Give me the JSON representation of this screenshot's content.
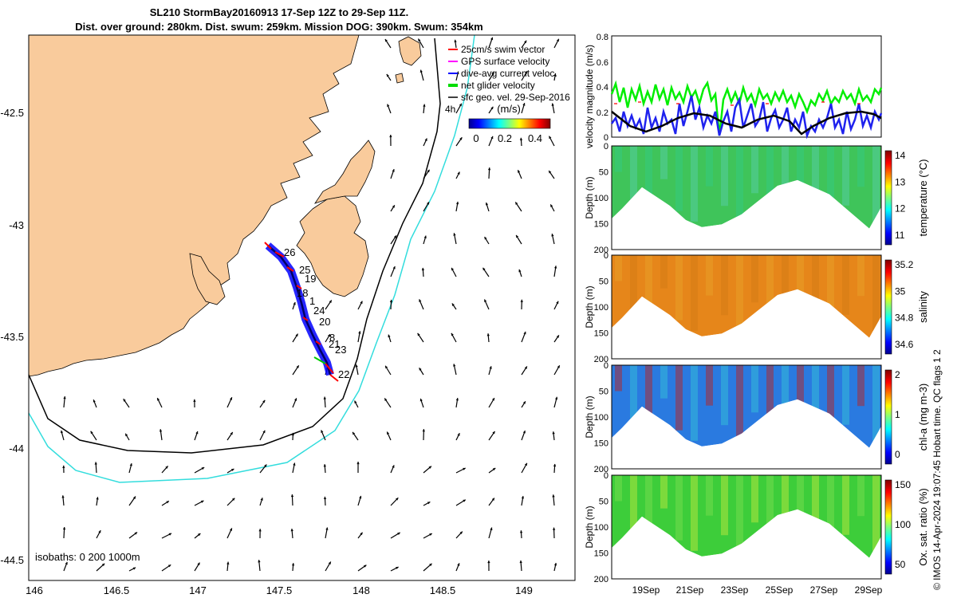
{
  "title": {
    "line1": "SL210 StormBay20160913 17-Sep 12Z to 29-Sep 11Z.",
    "line2": "Dist. over ground: 280km. Dist. swum: 259km. Mission DOG: 390km. Swum: 354km"
  },
  "map": {
    "lon_ticks": [
      "146",
      "146.5",
      "147",
      "147.5",
      "148",
      "148.5",
      "149"
    ],
    "lat_ticks": [
      "-42.5",
      "-43",
      "-43.5",
      "-44",
      "-44.5"
    ],
    "legend": [
      {
        "label": "25cm/s swim vector",
        "color": "#ff0000"
      },
      {
        "label": "GPS surface velocity",
        "color": "#ff00ff"
      },
      {
        "label": "dive-avg current veloc.",
        "color": "#0000ff"
      },
      {
        "label": "net glider velocity",
        "color": "#00dd00"
      },
      {
        "label": "sfc geo. vel. 29-Sep-2016",
        "color": "#000000"
      }
    ],
    "time_note": "4h",
    "colorbar": {
      "title": "(m/s)",
      "ticks": [
        "0",
        "0.2",
        "0.4"
      ]
    },
    "isobaths_label": "isobaths: 0   200  1000m",
    "track_labels": [
      "26",
      "25",
      "19",
      "18",
      "1",
      "24",
      "20",
      "8",
      "21",
      "23",
      "22"
    ],
    "land_color": "#f9cb9c",
    "isobath200_color": "#000000",
    "isobath1000_color": "#33dddd"
  },
  "velocity_panel": {
    "ylabel": "velocity magnitude (m/s)",
    "yticks": [
      "0",
      "0.2",
      "0.4",
      "0.6",
      "0.8"
    ]
  },
  "sections": [
    {
      "name": "temperature",
      "ylabel": "Depth (m)",
      "cblabel": "temperature (°C)",
      "cbticks": [
        "11",
        "12",
        "13",
        "14"
      ],
      "yticks": [
        "0",
        "50",
        "100",
        "150",
        "200"
      ]
    },
    {
      "name": "salinity",
      "ylabel": "Depth (m)",
      "cblabel": "salinity",
      "cbticks": [
        "34.6",
        "34.8",
        "35",
        "35.2"
      ],
      "yticks": [
        "0",
        "50",
        "100",
        "150",
        "200"
      ]
    },
    {
      "name": "chla",
      "ylabel": "Depth (m)",
      "cblabel": "chl-a (mg m-3)",
      "cbticks": [
        "0",
        "1",
        "2"
      ],
      "yticks": [
        "0",
        "50",
        "100",
        "150",
        "200"
      ]
    },
    {
      "name": "oxygen",
      "ylabel": "Depth (m)",
      "cblabel": "Ox. sat. ratio (%)",
      "cbticks": [
        "50",
        "100",
        "150"
      ],
      "yticks": [
        "0",
        "50",
        "100",
        "150",
        "200"
      ]
    }
  ],
  "x_dates": [
    "19Sep",
    "21Sep",
    "23Sep",
    "25Sep",
    "27Sep",
    "29Sep"
  ],
  "copyright": "© IMOS 14-Apr-2024 19:07:45 Hobart time. QC flags 1  2"
}
